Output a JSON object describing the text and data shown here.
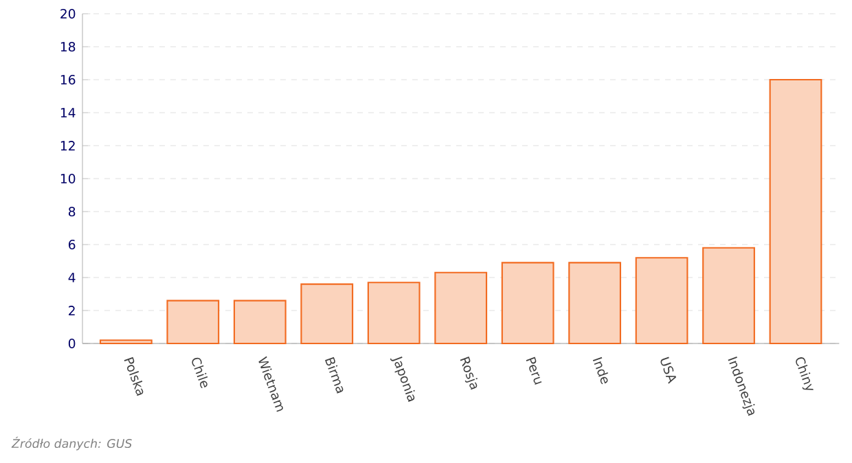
{
  "chart_data": {
    "type": "bar",
    "categories": [
      "Polska",
      "Chile",
      "Wietnam",
      "Birma",
      "Japonia",
      "Rosja",
      "Peru",
      "Inde",
      "USA",
      "Indonezja",
      "Chiny"
    ],
    "values": [
      0.2,
      2.6,
      2.6,
      3.6,
      3.7,
      4.3,
      4.9,
      4.9,
      5.2,
      5.8,
      16.0
    ],
    "color": "#f26b21",
    "ylim": [
      0,
      20
    ],
    "yticks": [
      0,
      2,
      4,
      6,
      8,
      10,
      12,
      14,
      16,
      18,
      20
    ],
    "grid": "y",
    "annotations": [
      "Źródło danych: GUS"
    ]
  }
}
